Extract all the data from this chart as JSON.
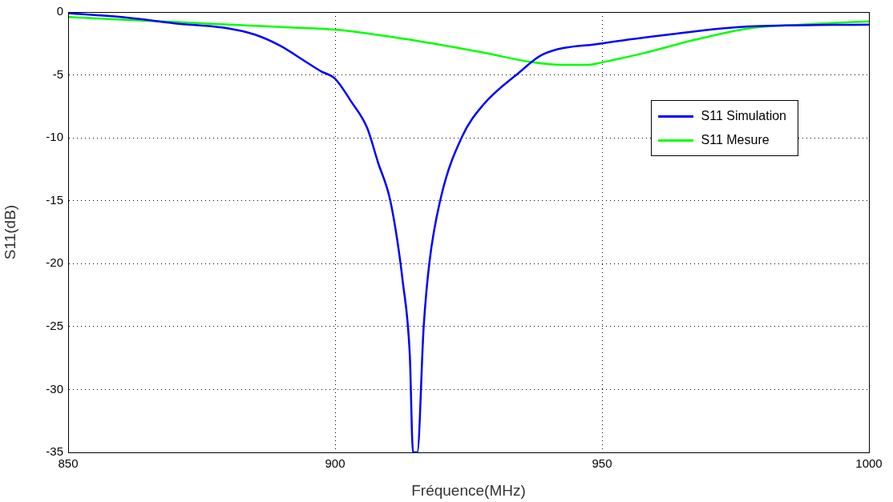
{
  "chart_data": {
    "type": "line",
    "xlabel": "Fréquence(MHz)",
    "ylabel": "S11(dB)",
    "xlim": [
      850,
      1000
    ],
    "xticks": [
      850,
      900,
      950,
      1000
    ],
    "ylim": [
      -35,
      0
    ],
    "yticks": [
      -35,
      -30,
      -25,
      -20,
      -15,
      -10,
      -5,
      0
    ],
    "grid": true,
    "legend": "top right",
    "marker": "none",
    "line_style": "solid",
    "series": [
      {
        "name": "S11 Simulation",
        "color": "#0000ff",
        "x": [
          850,
          860,
          870,
          880,
          885,
          889.8,
          894.3,
          897.3,
          900,
          903,
          906,
          908,
          910.4,
          912.7,
          914,
          914.6,
          915.4,
          916.6,
          917.7,
          919.9,
          923.8,
          927.7,
          934.5,
          938.8,
          950,
          962.4,
          977.5,
          1000
        ],
        "values": [
          -0.1,
          -0.4,
          -0.9,
          -1.3,
          -1.8,
          -2.7,
          -3.9,
          -4.7,
          -5.3,
          -7.1,
          -9.2,
          -11.9,
          -15.1,
          -21.5,
          -27.3,
          -35,
          -35,
          -25,
          -19.8,
          -14.6,
          -9.9,
          -7.4,
          -4.8,
          -3.4,
          -2.5,
          -1.8,
          -1.15,
          -1
        ]
      },
      {
        "name": "S11 Mesure",
        "color": "#00ff00",
        "x": [
          850,
          870,
          890,
          900,
          915.5,
          927.5,
          937,
          942.4,
          947.4,
          950,
          957.5,
          967.5,
          977.5,
          987.5,
          1000
        ],
        "values": [
          -0.4,
          -0.8,
          -1.2,
          -1.4,
          -2.3,
          -3.2,
          -4,
          -4.2,
          -4.2,
          -4,
          -3.3,
          -2.2,
          -1.3,
          -1,
          -0.75
        ]
      }
    ]
  }
}
